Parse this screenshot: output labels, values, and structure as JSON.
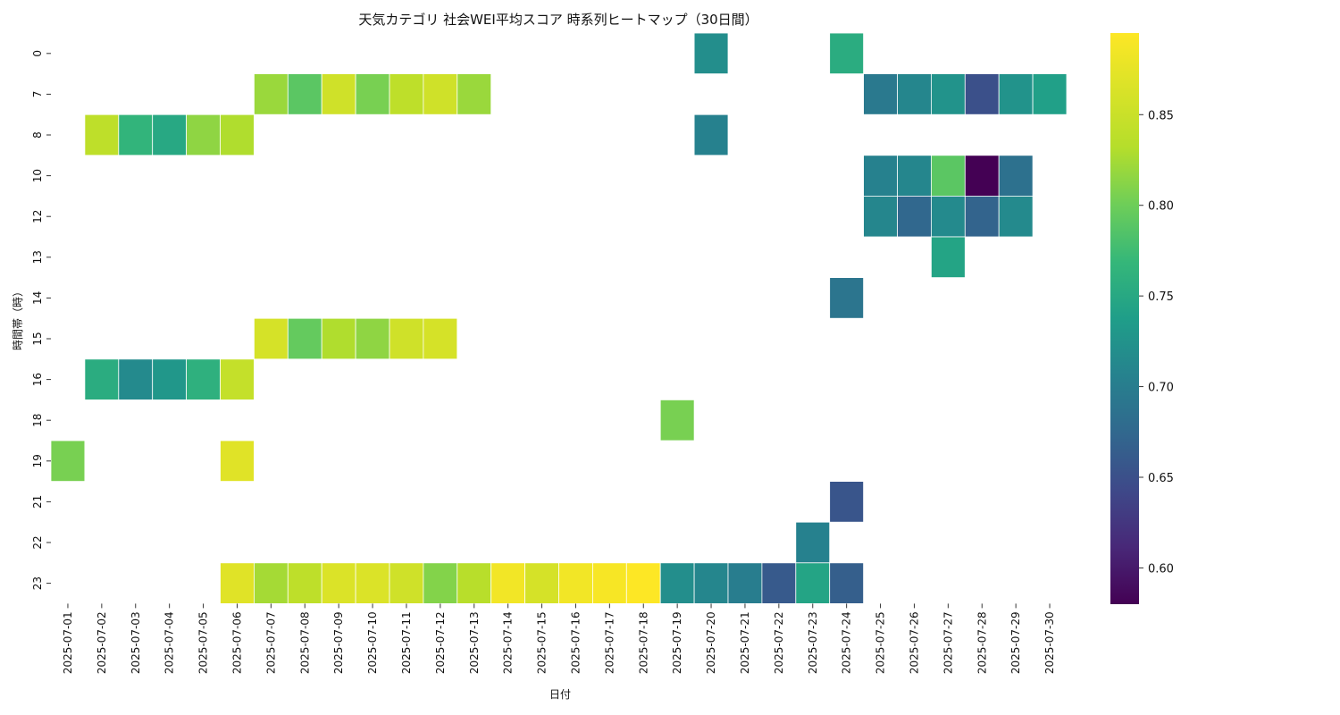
{
  "chart_data": {
    "type": "heatmap",
    "title": "天気カテゴリ 社会WEI平均スコア 時系列ヒートマップ（30日間）",
    "xlabel": "日付",
    "ylabel": "時間帯（時）",
    "colormap": "viridis",
    "color_range": [
      0.58,
      0.895
    ],
    "colorbar_ticks": [
      0.6,
      0.65,
      0.7,
      0.75,
      0.8,
      0.85
    ],
    "colorbar_tick_labels": [
      "0.60",
      "0.65",
      "0.70",
      "0.75",
      "0.80",
      "0.85"
    ],
    "x_categories": [
      "2025-07-01",
      "2025-07-02",
      "2025-07-03",
      "2025-07-04",
      "2025-07-05",
      "2025-07-06",
      "2025-07-07",
      "2025-07-08",
      "2025-07-09",
      "2025-07-10",
      "2025-07-11",
      "2025-07-12",
      "2025-07-13",
      "2025-07-14",
      "2025-07-15",
      "2025-07-16",
      "2025-07-17",
      "2025-07-18",
      "2025-07-19",
      "2025-07-20",
      "2025-07-21",
      "2025-07-22",
      "2025-07-23",
      "2025-07-24",
      "2025-07-25",
      "2025-07-26",
      "2025-07-27",
      "2025-07-28",
      "2025-07-29",
      "2025-07-30"
    ],
    "y_categories": [
      "0",
      "7",
      "8",
      "10",
      "12",
      "13",
      "14",
      "15",
      "16",
      "18",
      "19",
      "21",
      "22",
      "23"
    ],
    "cells": [
      {
        "date": "2025-07-20",
        "hour": "0",
        "value": 0.72
      },
      {
        "date": "2025-07-24",
        "hour": "0",
        "value": 0.755
      },
      {
        "date": "2025-07-07",
        "hour": "7",
        "value": 0.82
      },
      {
        "date": "2025-07-08",
        "hour": "7",
        "value": 0.79
      },
      {
        "date": "2025-07-09",
        "hour": "7",
        "value": 0.855
      },
      {
        "date": "2025-07-10",
        "hour": "7",
        "value": 0.805
      },
      {
        "date": "2025-07-11",
        "hour": "7",
        "value": 0.84
      },
      {
        "date": "2025-07-12",
        "hour": "7",
        "value": 0.855
      },
      {
        "date": "2025-07-13",
        "hour": "7",
        "value": 0.82
      },
      {
        "date": "2025-07-25",
        "hour": "7",
        "value": 0.695
      },
      {
        "date": "2025-07-26",
        "hour": "7",
        "value": 0.71
      },
      {
        "date": "2025-07-27",
        "hour": "7",
        "value": 0.725
      },
      {
        "date": "2025-07-28",
        "hour": "7",
        "value": 0.65
      },
      {
        "date": "2025-07-29",
        "hour": "7",
        "value": 0.725
      },
      {
        "date": "2025-07-30",
        "hour": "7",
        "value": 0.74
      },
      {
        "date": "2025-07-02",
        "hour": "8",
        "value": 0.84
      },
      {
        "date": "2025-07-03",
        "hour": "8",
        "value": 0.765
      },
      {
        "date": "2025-07-04",
        "hour": "8",
        "value": 0.75
      },
      {
        "date": "2025-07-05",
        "hour": "8",
        "value": 0.815
      },
      {
        "date": "2025-07-06",
        "hour": "8",
        "value": 0.83
      },
      {
        "date": "2025-07-20",
        "hour": "8",
        "value": 0.705
      },
      {
        "date": "2025-07-25",
        "hour": "10",
        "value": 0.705
      },
      {
        "date": "2025-07-26",
        "hour": "10",
        "value": 0.71
      },
      {
        "date": "2025-07-27",
        "hour": "10",
        "value": 0.79
      },
      {
        "date": "2025-07-28",
        "hour": "10",
        "value": 0.58
      },
      {
        "date": "2025-07-29",
        "hour": "10",
        "value": 0.685
      },
      {
        "date": "2025-07-25",
        "hour": "12",
        "value": 0.71
      },
      {
        "date": "2025-07-26",
        "hour": "12",
        "value": 0.675
      },
      {
        "date": "2025-07-27",
        "hour": "12",
        "value": 0.715
      },
      {
        "date": "2025-07-28",
        "hour": "12",
        "value": 0.67
      },
      {
        "date": "2025-07-29",
        "hour": "12",
        "value": 0.715
      },
      {
        "date": "2025-07-27",
        "hour": "13",
        "value": 0.745
      },
      {
        "date": "2025-07-24",
        "hour": "14",
        "value": 0.69
      },
      {
        "date": "2025-07-07",
        "hour": "15",
        "value": 0.86
      },
      {
        "date": "2025-07-08",
        "hour": "15",
        "value": 0.795
      },
      {
        "date": "2025-07-09",
        "hour": "15",
        "value": 0.83
      },
      {
        "date": "2025-07-10",
        "hour": "15",
        "value": 0.815
      },
      {
        "date": "2025-07-11",
        "hour": "15",
        "value": 0.855
      },
      {
        "date": "2025-07-12",
        "hour": "15",
        "value": 0.86
      },
      {
        "date": "2025-07-02",
        "hour": "16",
        "value": 0.755
      },
      {
        "date": "2025-07-03",
        "hour": "16",
        "value": 0.715
      },
      {
        "date": "2025-07-04",
        "hour": "16",
        "value": 0.73
      },
      {
        "date": "2025-07-05",
        "hour": "16",
        "value": 0.76
      },
      {
        "date": "2025-07-06",
        "hour": "16",
        "value": 0.845
      },
      {
        "date": "2025-07-19",
        "hour": "18",
        "value": 0.805
      },
      {
        "date": "2025-07-01",
        "hour": "19",
        "value": 0.805
      },
      {
        "date": "2025-07-06",
        "hour": "19",
        "value": 0.87
      },
      {
        "date": "2025-07-24",
        "hour": "21",
        "value": 0.655
      },
      {
        "date": "2025-07-23",
        "hour": "22",
        "value": 0.705
      },
      {
        "date": "2025-07-06",
        "hour": "23",
        "value": 0.87
      },
      {
        "date": "2025-07-07",
        "hour": "23",
        "value": 0.825
      },
      {
        "date": "2025-07-08",
        "hour": "23",
        "value": 0.84
      },
      {
        "date": "2025-07-09",
        "hour": "23",
        "value": 0.865
      },
      {
        "date": "2025-07-10",
        "hour": "23",
        "value": 0.865
      },
      {
        "date": "2025-07-11",
        "hour": "23",
        "value": 0.855
      },
      {
        "date": "2025-07-12",
        "hour": "23",
        "value": 0.81
      },
      {
        "date": "2025-07-13",
        "hour": "23",
        "value": 0.835
      },
      {
        "date": "2025-07-14",
        "hour": "23",
        "value": 0.885
      },
      {
        "date": "2025-07-15",
        "hour": "23",
        "value": 0.86
      },
      {
        "date": "2025-07-16",
        "hour": "23",
        "value": 0.885
      },
      {
        "date": "2025-07-17",
        "hour": "23",
        "value": 0.89
      },
      {
        "date": "2025-07-18",
        "hour": "23",
        "value": 0.895
      },
      {
        "date": "2025-07-19",
        "hour": "23",
        "value": 0.72
      },
      {
        "date": "2025-07-20",
        "hour": "23",
        "value": 0.71
      },
      {
        "date": "2025-07-21",
        "hour": "23",
        "value": 0.7
      },
      {
        "date": "2025-07-22",
        "hour": "23",
        "value": 0.66
      },
      {
        "date": "2025-07-23",
        "hour": "23",
        "value": 0.745
      },
      {
        "date": "2025-07-24",
        "hour": "23",
        "value": 0.665
      }
    ]
  }
}
